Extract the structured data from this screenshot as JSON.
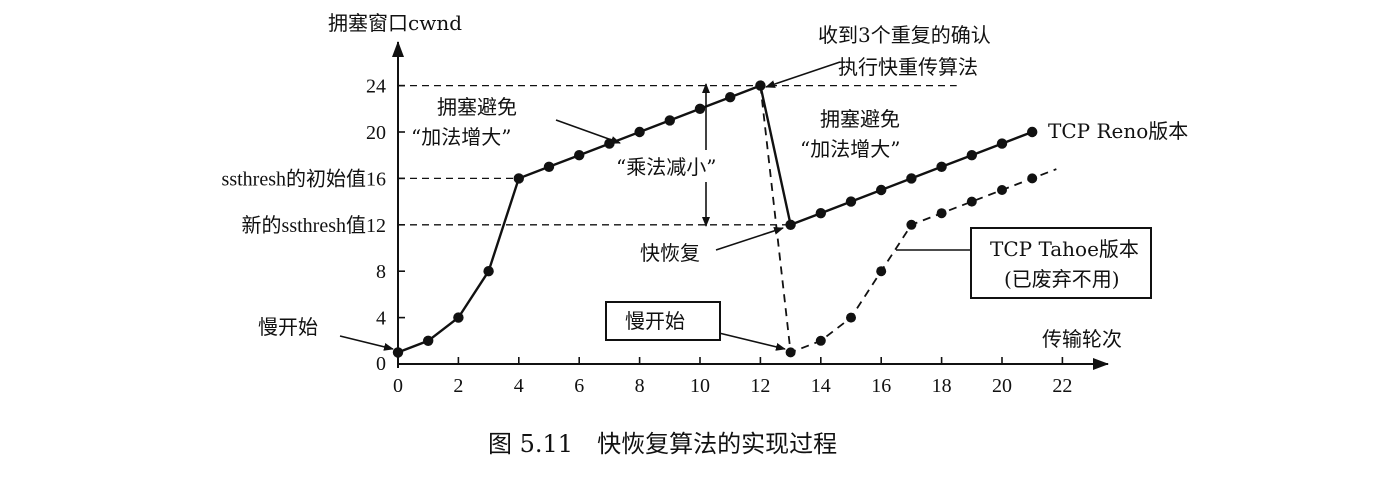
{
  "chart_data": {
    "type": "line",
    "ylabel": "拥塞窗口cwnd",
    "xlabel": "传输轮次",
    "xlim": [
      0,
      22
    ],
    "ylim": [
      0,
      24
    ],
    "x_ticks": [
      "0",
      "2",
      "4",
      "6",
      "8",
      "10",
      "12",
      "14",
      "16",
      "18",
      "20",
      "22"
    ],
    "y_ticks": [
      "0",
      "4",
      "8",
      "12",
      "16",
      "20",
      "24"
    ],
    "y_tick_labels": {
      "12": "新的ssthresh值12",
      "16": "ssthresh的初始值16"
    },
    "reference_lines": [
      {
        "y": 24,
        "x_to": 18.5
      },
      {
        "y": 16,
        "x_to": 4
      },
      {
        "y": 12,
        "x_to": 13
      }
    ],
    "series": [
      {
        "name": "TCP Reno版本",
        "style": "solid",
        "x": [
          0,
          1,
          2,
          3,
          4,
          5,
          6,
          7,
          8,
          9,
          10,
          11,
          12,
          13,
          14,
          15,
          16,
          17,
          18,
          19,
          20,
          21
        ],
        "y": [
          1,
          2,
          4,
          8,
          16,
          17,
          18,
          19,
          20,
          21,
          22,
          23,
          24,
          12,
          13,
          14,
          15,
          16,
          17,
          18,
          19,
          20
        ]
      },
      {
        "name": "TCP Tahoe版本",
        "note": "(已废弃不用)",
        "style": "dashed",
        "x": [
          12,
          13,
          14,
          15,
          16,
          17,
          18,
          19,
          20,
          21
        ],
        "y": [
          24,
          1,
          2,
          4,
          8,
          12,
          13,
          14,
          15,
          16
        ],
        "extend_to_x": 21.8
      }
    ],
    "annotations": [
      {
        "id": "slow_start_left",
        "text": "慢开始"
      },
      {
        "id": "slow_start_box",
        "text": "慢开始"
      },
      {
        "id": "ca_left_1",
        "text": "拥塞避免"
      },
      {
        "id": "ca_left_2",
        "text": "“加法增大”"
      },
      {
        "id": "ca_right_1",
        "text": "拥塞避免"
      },
      {
        "id": "ca_right_2",
        "text": "“加法增大”"
      },
      {
        "id": "md",
        "text": "“乘法减小”"
      },
      {
        "id": "fast_recovery",
        "text": "快恢复"
      },
      {
        "id": "dup_ack_1",
        "text": "收到3个重复的确认"
      },
      {
        "id": "dup_ack_2",
        "text": "执行快重传算法"
      }
    ],
    "caption": "图 5.11　快恢复算法的实现过程"
  }
}
